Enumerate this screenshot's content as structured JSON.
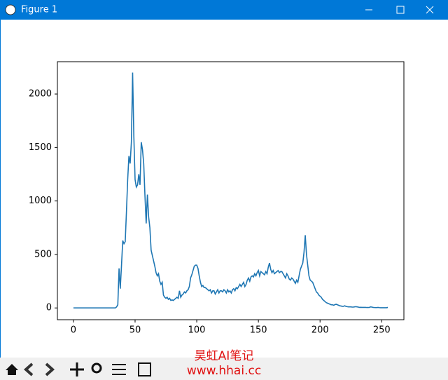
{
  "window": {
    "title": "Figure 1"
  },
  "watermark": {
    "line1": "昊虹AI笔记",
    "line2": "www.hhai.cc"
  },
  "chart_data": {
    "type": "line",
    "x": [
      0,
      1,
      2,
      3,
      4,
      5,
      6,
      7,
      8,
      9,
      10,
      11,
      12,
      13,
      14,
      15,
      16,
      17,
      18,
      19,
      20,
      21,
      22,
      23,
      24,
      25,
      26,
      27,
      28,
      29,
      30,
      31,
      32,
      33,
      34,
      35,
      36,
      37,
      38,
      39,
      40,
      41,
      42,
      43,
      44,
      45,
      46,
      47,
      48,
      49,
      50,
      51,
      52,
      53,
      54,
      55,
      56,
      57,
      58,
      59,
      60,
      61,
      62,
      63,
      64,
      65,
      66,
      67,
      68,
      69,
      70,
      71,
      72,
      73,
      74,
      75,
      76,
      77,
      78,
      79,
      80,
      81,
      82,
      83,
      84,
      85,
      86,
      87,
      88,
      89,
      90,
      91,
      92,
      93,
      94,
      95,
      96,
      97,
      98,
      99,
      100,
      101,
      102,
      103,
      104,
      105,
      106,
      107,
      108,
      109,
      110,
      111,
      112,
      113,
      114,
      115,
      116,
      117,
      118,
      119,
      120,
      121,
      122,
      123,
      124,
      125,
      126,
      127,
      128,
      129,
      130,
      131,
      132,
      133,
      134,
      135,
      136,
      137,
      138,
      139,
      140,
      141,
      142,
      143,
      144,
      145,
      146,
      147,
      148,
      149,
      150,
      151,
      152,
      153,
      154,
      155,
      156,
      157,
      158,
      159,
      160,
      161,
      162,
      163,
      164,
      165,
      166,
      167,
      168,
      169,
      170,
      171,
      172,
      173,
      174,
      175,
      176,
      177,
      178,
      179,
      180,
      181,
      182,
      183,
      184,
      185,
      186,
      187,
      188,
      189,
      190,
      191,
      192,
      193,
      194,
      195,
      196,
      197,
      198,
      199,
      200,
      201,
      202,
      203,
      204,
      205,
      206,
      207,
      208,
      209,
      210,
      211,
      212,
      213,
      214,
      215,
      216,
      217,
      218,
      219,
      220,
      221,
      222,
      223,
      224,
      225,
      226,
      227,
      228,
      229,
      230,
      231,
      232,
      233,
      234,
      235,
      236,
      237,
      238,
      239,
      240,
      241,
      242,
      243,
      244,
      245,
      246,
      247,
      248,
      249,
      250,
      251,
      252,
      253,
      254,
      255
    ],
    "series": [
      {
        "color": "#1f77b4",
        "values": [
          0,
          0,
          0,
          0,
          0,
          0,
          0,
          0,
          0,
          0,
          0,
          0,
          0,
          0,
          0,
          0,
          0,
          0,
          0,
          0,
          0,
          0,
          0,
          0,
          0,
          0,
          0,
          0,
          0,
          0,
          0,
          0,
          0,
          0,
          0,
          10,
          30,
          370,
          180,
          400,
          630,
          600,
          620,
          900,
          1200,
          1420,
          1350,
          1550,
          2200,
          1600,
          1200,
          1130,
          1150,
          1250,
          1150,
          1550,
          1480,
          1350,
          1050,
          790,
          1060,
          850,
          750,
          540,
          490,
          440,
          390,
          330,
          300,
          320,
          250,
          220,
          240,
          120,
          100,
          90,
          100,
          80,
          90,
          70,
          75,
          70,
          80,
          90,
          100,
          90,
          160,
          100,
          120,
          130,
          150,
          140,
          160,
          170,
          200,
          280,
          310,
          350,
          390,
          400,
          400,
          370,
          300,
          240,
          200,
          210,
          190,
          190,
          180,
          170,
          160,
          170,
          140,
          160,
          160,
          130,
          150,
          170,
          140,
          160,
          160,
          150,
          170,
          160,
          140,
          170,
          150,
          160,
          140,
          170,
          180,
          160,
          190,
          180,
          200,
          220,
          200,
          220,
          240,
          200,
          220,
          260,
          280,
          250,
          290,
          300,
          290,
          320,
          300,
          330,
          350,
          300,
          340,
          330,
          320,
          310,
          340,
          320,
          380,
          420,
          360,
          330,
          350,
          320,
          330,
          340,
          350,
          330,
          340,
          340,
          320,
          300,
          280,
          320,
          300,
          270,
          260,
          280,
          270,
          250,
          230,
          260,
          240,
          300,
          360,
          390,
          420,
          520,
          680,
          500,
          400,
          300,
          260,
          250,
          240,
          210,
          180,
          150,
          140,
          120,
          110,
          100,
          80,
          70,
          60,
          50,
          45,
          40,
          35,
          30,
          30,
          25,
          30,
          35,
          30,
          25,
          20,
          18,
          15,
          15,
          20,
          15,
          12,
          10,
          10,
          10,
          8,
          8,
          10,
          12,
          10,
          8,
          5,
          6,
          5,
          5,
          5,
          5,
          4,
          4,
          5,
          10,
          8,
          5,
          4,
          3,
          3,
          5,
          3,
          2,
          2,
          2,
          2,
          2,
          2,
          5
        ]
      }
    ],
    "xlim": [
      -13,
      268
    ],
    "ylim": [
      -110,
      2302
    ],
    "xticks": [
      0,
      50,
      100,
      150,
      200,
      250
    ],
    "yticks": [
      0,
      500,
      1000,
      1500,
      2000
    ]
  }
}
